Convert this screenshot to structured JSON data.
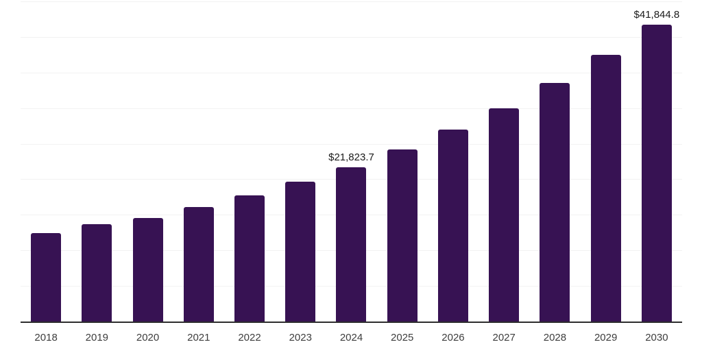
{
  "chart_data": {
    "type": "bar",
    "title": "",
    "xlabel": "",
    "ylabel": "",
    "categories": [
      "2018",
      "2019",
      "2020",
      "2021",
      "2022",
      "2023",
      "2024",
      "2025",
      "2026",
      "2027",
      "2028",
      "2029",
      "2030"
    ],
    "values": [
      12500,
      13780,
      14680,
      16160,
      17830,
      19750,
      21823.7,
      24320,
      27060,
      30100,
      33600,
      37560,
      41844.8
    ],
    "point_labels": {
      "2024": "$21,823.7",
      "2030": "$41,844.8"
    },
    "ylim": [
      0,
      45000
    ],
    "gridline_step": 5000,
    "grid": true,
    "y_axis_tick_labels_visible": false,
    "legend_position": "none"
  },
  "colors": {
    "bar": "#371253",
    "gridline": "#f2f2f2",
    "axis_line": "#2d2d2d",
    "data_label": "#1a1a1a",
    "tick_label": "#3d3d3d",
    "background": "#ffffff"
  }
}
